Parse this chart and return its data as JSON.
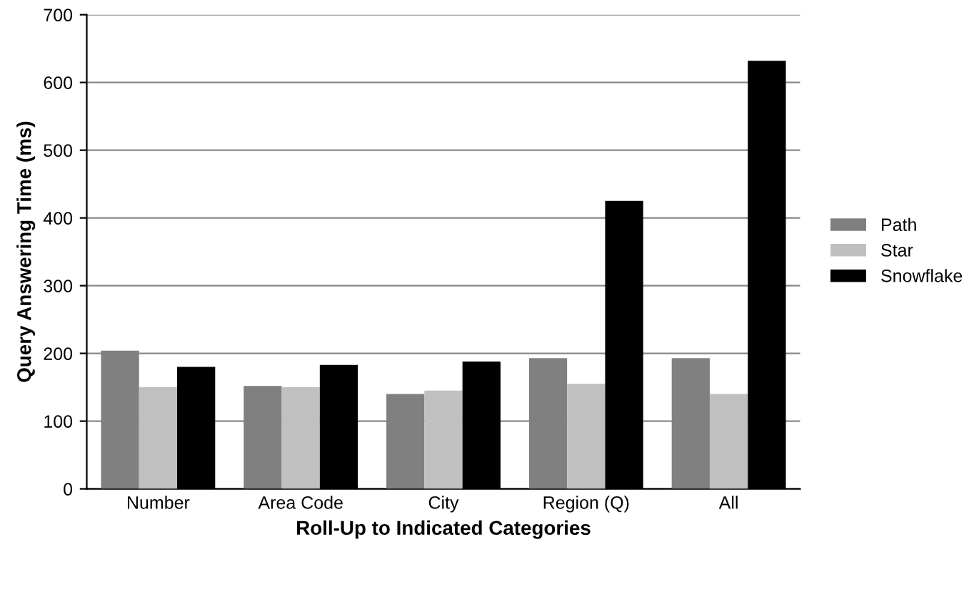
{
  "chart_data": {
    "type": "bar",
    "xlabel": "Roll-Up to Indicated Categories",
    "ylabel": "Query Answering Time (ms)",
    "categories": [
      "Number",
      "Area Code",
      "City",
      "Region (Q)",
      "All"
    ],
    "series": [
      {
        "name": "Path",
        "color": "#808080",
        "values": [
          204,
          152,
          140,
          193,
          193
        ]
      },
      {
        "name": "Star",
        "color": "#c0c0c0",
        "values": [
          150,
          150,
          145,
          155,
          140
        ]
      },
      {
        "name": "Snowflake",
        "color": "#000000",
        "values": [
          180,
          183,
          188,
          425,
          632
        ]
      }
    ],
    "ylim": [
      0,
      700
    ],
    "yticks": [
      0,
      100,
      200,
      300,
      400,
      500,
      600,
      700
    ],
    "grid": "y",
    "legend": "right"
  }
}
